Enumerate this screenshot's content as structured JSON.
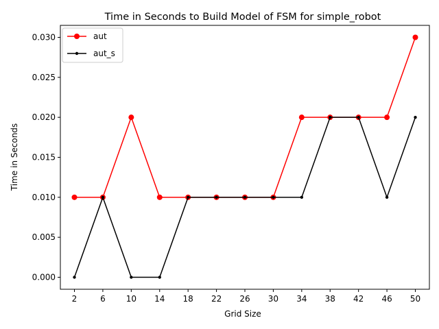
{
  "chart_data": {
    "type": "line",
    "title": "Time in Seconds to Build Model of FSM for simple_robot",
    "xlabel": "Grid Size",
    "ylabel": "Time in Seconds",
    "x": [
      2,
      6,
      10,
      14,
      18,
      22,
      26,
      30,
      34,
      38,
      42,
      46,
      50
    ],
    "ylim": [
      -0.0015,
      0.0315
    ],
    "yticks": [
      "0.000",
      "0.005",
      "0.010",
      "0.015",
      "0.020",
      "0.025",
      "0.030"
    ],
    "ytick_values": [
      0,
      0.005,
      0.01,
      0.015,
      0.02,
      0.025,
      0.03
    ],
    "grid": false,
    "legend_position": "top-left",
    "series": [
      {
        "name": "aut",
        "color": "#ff0000",
        "marker": "large-circle",
        "values": [
          0.01,
          0.01,
          0.02,
          0.01,
          0.01,
          0.01,
          0.01,
          0.01,
          0.02,
          0.02,
          0.02,
          0.02,
          0.03
        ]
      },
      {
        "name": "aut_s",
        "color": "#000000",
        "marker": "small-dot",
        "values": [
          0.0,
          0.01,
          0.0,
          0.0,
          0.01,
          0.01,
          0.01,
          0.01,
          0.01,
          0.02,
          0.02,
          0.01,
          0.02
        ]
      }
    ]
  }
}
